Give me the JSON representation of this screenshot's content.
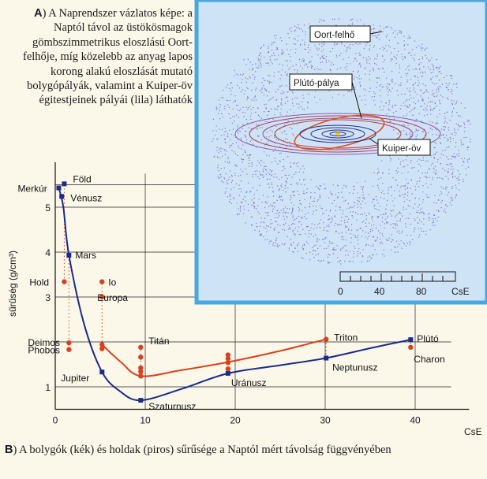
{
  "caption_a": {
    "letter": "A",
    "text": ") A Naprendszer vázlatos képe: a Naptól távol az üstökösmagok gömbszimmetrikus eloszlású Oort-felhője, míg közelebb az anyag lapos korong alakú eloszlását mutató bolygópályák, valamint a Kuiper-öv égitestjeinek pályái (lila) láthatók"
  },
  "inset": {
    "labels": {
      "oort": "Oort-felhő",
      "pluto_orbit": "Plútó-pálya",
      "kuiper": "Kuiper-öv"
    },
    "scale": {
      "ticks": [
        "0",
        "40",
        "80"
      ],
      "unit": "CsE"
    }
  },
  "caption_b": {
    "letter": "B",
    "text": ") A bolygók (kék) és holdak (piros) sűrűsége a Naptól mért távolság függvényében"
  },
  "colors": {
    "planets": "#1b2a8c",
    "moons": "#d9411e",
    "inset_bg": "#cfe3f6",
    "inset_border": "#4aa6de",
    "oort_dots": "#6a5fb3"
  },
  "chart_data": {
    "type": "scatter",
    "xlabel": "CsE",
    "ylabel": "sűrűség (g/cm³)",
    "xlim": [
      0,
      44
    ],
    "ylim": [
      0.5,
      6
    ],
    "x_ticks": [
      0,
      10,
      20,
      30,
      40
    ],
    "y_ticks": [
      1,
      3,
      4,
      5
    ],
    "series": [
      {
        "name": "bolygók",
        "points": [
          {
            "label": "Merkúr",
            "x": 0.39,
            "y": 5.43
          },
          {
            "label": "Vénusz",
            "x": 0.72,
            "y": 5.24
          },
          {
            "label": "Föld",
            "x": 1.0,
            "y": 5.52
          },
          {
            "label": "Mars",
            "x": 1.52,
            "y": 3.93
          },
          {
            "label": "Jupiter",
            "x": 5.2,
            "y": 1.33
          },
          {
            "label": "Szaturnusz",
            "x": 9.5,
            "y": 0.7
          },
          {
            "label": "Uránusz",
            "x": 19.2,
            "y": 1.3
          },
          {
            "label": "Neptunusz",
            "x": 30.1,
            "y": 1.64
          },
          {
            "label": "Plútó",
            "x": 39.5,
            "y": 2.05
          }
        ]
      },
      {
        "name": "holdak",
        "points": [
          {
            "label": "Hold",
            "x": 1.0,
            "y": 3.34
          },
          {
            "label": "Deimos",
            "x": 1.52,
            "y": 1.98
          },
          {
            "label": "Phobos",
            "x": 1.52,
            "y": 1.83
          },
          {
            "label": "Io",
            "x": 5.2,
            "y": 3.34
          },
          {
            "label": "Europa",
            "x": 5.2,
            "y": 3.0
          },
          {
            "label": "",
            "x": 5.2,
            "y": 1.94
          },
          {
            "label": "",
            "x": 5.2,
            "y": 1.85
          },
          {
            "label": "Titán",
            "x": 9.5,
            "y": 1.88
          },
          {
            "label": "",
            "x": 9.5,
            "y": 1.66
          },
          {
            "label": "",
            "x": 9.5,
            "y": 1.42
          },
          {
            "label": "",
            "x": 9.5,
            "y": 1.34
          },
          {
            "label": "",
            "x": 9.5,
            "y": 1.24
          },
          {
            "label": "",
            "x": 19.2,
            "y": 1.71
          },
          {
            "label": "",
            "x": 19.2,
            "y": 1.63
          },
          {
            "label": "",
            "x": 19.2,
            "y": 1.54
          },
          {
            "label": "",
            "x": 19.2,
            "y": 1.4
          },
          {
            "label": "Triton",
            "x": 30.1,
            "y": 2.06
          },
          {
            "label": "Charon",
            "x": 39.5,
            "y": 1.88
          }
        ]
      }
    ]
  }
}
